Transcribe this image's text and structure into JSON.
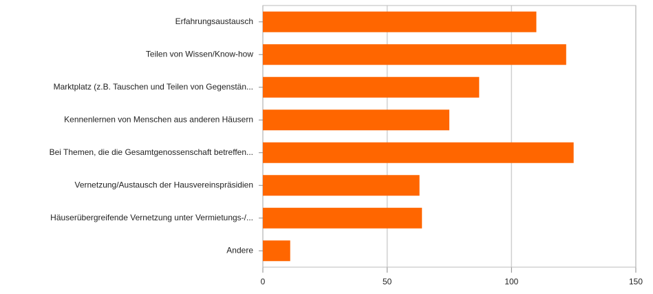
{
  "chart_data": {
    "type": "bar",
    "orientation": "horizontal",
    "categories": [
      "Erfahrungsaustausch",
      "Teilen von Wissen/Know-how",
      "Marktplatz (z.B. Tauschen und Teilen von Gegenstän...",
      "Kennenlernen von Menschen aus anderen Häusern",
      "Bei Themen, die die Gesamtgenossenschaft betreffen...",
      "Vernetzung/Austausch der Hausvereinspräsidien",
      "Häuserübergreifende Vernetzung unter Vermietungs-/...",
      "Andere"
    ],
    "values": [
      110,
      122,
      87,
      75,
      125,
      63,
      64,
      11
    ],
    "color": "#ff6600",
    "xlim": [
      0,
      150
    ],
    "xticks": [
      0,
      50,
      100,
      150
    ],
    "grid": true
  }
}
